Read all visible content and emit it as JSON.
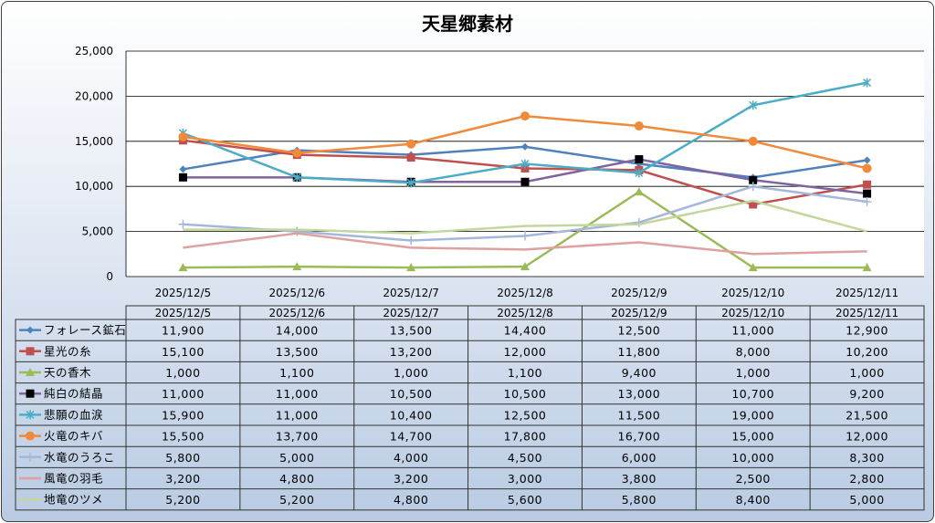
{
  "chart_data": {
    "type": "line",
    "title": "天星郷素材",
    "categories": [
      "2025/12/5",
      "2025/12/6",
      "2025/12/7",
      "2025/12/8",
      "2025/12/9",
      "2025/12/10",
      "2025/12/11"
    ],
    "ylim": [
      0,
      25000
    ],
    "yticks": [
      "0",
      "5,000",
      "10,000",
      "15,000",
      "20,000",
      "25,000"
    ],
    "grid": true,
    "legend": "data-table",
    "series": [
      {
        "name": "フォレース鉱石",
        "color": "#4f81bd",
        "marker": "diamond",
        "values": [
          11900,
          14000,
          13500,
          14400,
          12500,
          11000,
          12900
        ],
        "labels": [
          "11,900",
          "14,000",
          "13,500",
          "14,400",
          "12,500",
          "11,000",
          "12,900"
        ]
      },
      {
        "name": "星光の糸",
        "color": "#c0504d",
        "marker": "square",
        "values": [
          15100,
          13500,
          13200,
          12000,
          11800,
          8000,
          10200
        ],
        "labels": [
          "15,100",
          "13,500",
          "13,200",
          "12,000",
          "11,800",
          "8,000",
          "10,200"
        ]
      },
      {
        "name": "天の香木",
        "color": "#9bbb59",
        "marker": "triangle",
        "values": [
          1000,
          1100,
          1000,
          1100,
          9400,
          1000,
          1000
        ],
        "labels": [
          "1,000",
          "1,100",
          "1,000",
          "1,100",
          "9,400",
          "1,000",
          "1,000"
        ]
      },
      {
        "name": "純白の結晶",
        "color": "#8064a2",
        "marker": "blacksquare",
        "values": [
          11000,
          11000,
          10500,
          10500,
          13000,
          10700,
          9200
        ],
        "labels": [
          "11,000",
          "11,000",
          "10,500",
          "10,500",
          "13,000",
          "10,700",
          "9,200"
        ]
      },
      {
        "name": "悲願の血涙",
        "color": "#4bacc6",
        "marker": "star",
        "values": [
          15900,
          11000,
          10400,
          12500,
          11500,
          19000,
          21500
        ],
        "labels": [
          "15,900",
          "11,000",
          "10,400",
          "12,500",
          "11,500",
          "19,000",
          "21,500"
        ]
      },
      {
        "name": "火竜のキバ",
        "color": "#f08a3a",
        "marker": "circle",
        "values": [
          15500,
          13700,
          14700,
          17800,
          16700,
          15000,
          12000
        ],
        "labels": [
          "15,500",
          "13,700",
          "14,700",
          "17,800",
          "16,700",
          "15,000",
          "12,000"
        ]
      },
      {
        "name": "水竜のうろこ",
        "color": "#a5b6dc",
        "marker": "plus",
        "values": [
          5800,
          5000,
          4000,
          4500,
          6000,
          10000,
          8300
        ],
        "labels": [
          "5,800",
          "5,000",
          "4,000",
          "4,500",
          "6,000",
          "10,000",
          "8,300"
        ]
      },
      {
        "name": "風竜の羽毛",
        "color": "#e0a0a0",
        "marker": "none",
        "values": [
          3200,
          4800,
          3200,
          3000,
          3800,
          2500,
          2800
        ],
        "labels": [
          "3,200",
          "4,800",
          "3,200",
          "3,000",
          "3,800",
          "2,500",
          "2,800"
        ]
      },
      {
        "name": "地竜のツメ",
        "color": "#c3d69b",
        "marker": "none",
        "values": [
          5200,
          5200,
          4800,
          5600,
          5800,
          8400,
          5000
        ],
        "labels": [
          "5,200",
          "5,200",
          "4,800",
          "5,600",
          "5,800",
          "8,400",
          "5,000"
        ]
      }
    ]
  }
}
